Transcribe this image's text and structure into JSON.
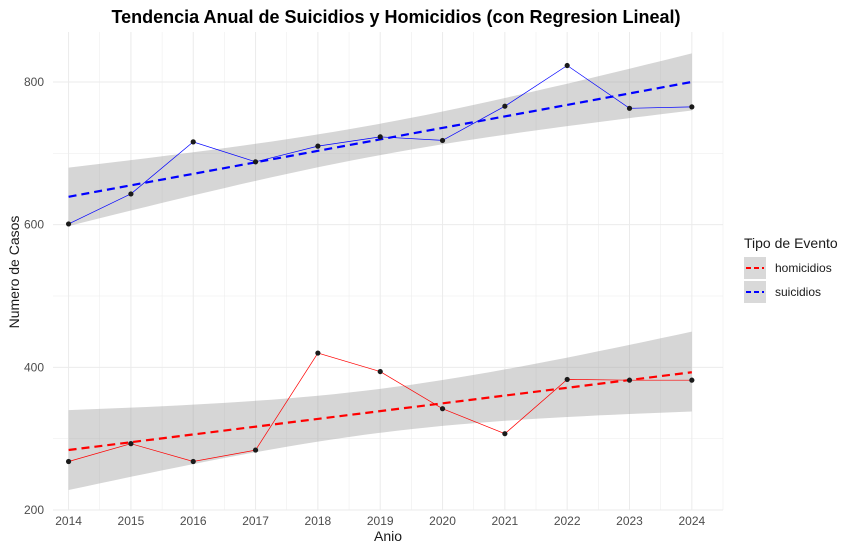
{
  "chart_data": {
    "type": "line",
    "title": "Tendencia Anual de Suicidios y Homicidios (con Regresion Lineal)",
    "xlabel": "Anio",
    "ylabel": "Numero de Casos",
    "x": [
      2014,
      2015,
      2016,
      2017,
      2018,
      2019,
      2020,
      2021,
      2022,
      2023,
      2024
    ],
    "xlim": [
      2013.75,
      2024.5
    ],
    "ylim": [
      200,
      870
    ],
    "yticks": [
      200,
      400,
      600,
      800
    ],
    "grid": true,
    "legend": {
      "title": "Tipo de Evento",
      "position": "right"
    },
    "series": [
      {
        "name": "homicidios",
        "color": "#ff0000",
        "values": [
          268,
          293,
          268,
          284,
          420,
          394,
          342,
          307,
          383,
          382,
          382
        ],
        "fit": {
          "intercept": 284.1,
          "slope": 10.9,
          "ci_start": [
            228,
            340
          ],
          "ci_end": [
            338,
            450
          ]
        }
      },
      {
        "name": "suicidios",
        "color": "#0000ff",
        "values": [
          601,
          643,
          716,
          688,
          710,
          723,
          718,
          766,
          823,
          763,
          765
        ],
        "fit": {
          "intercept": 639.0,
          "slope": 16.1,
          "ci_start": [
            598,
            680
          ],
          "ci_end": [
            760,
            840
          ]
        }
      }
    ]
  }
}
